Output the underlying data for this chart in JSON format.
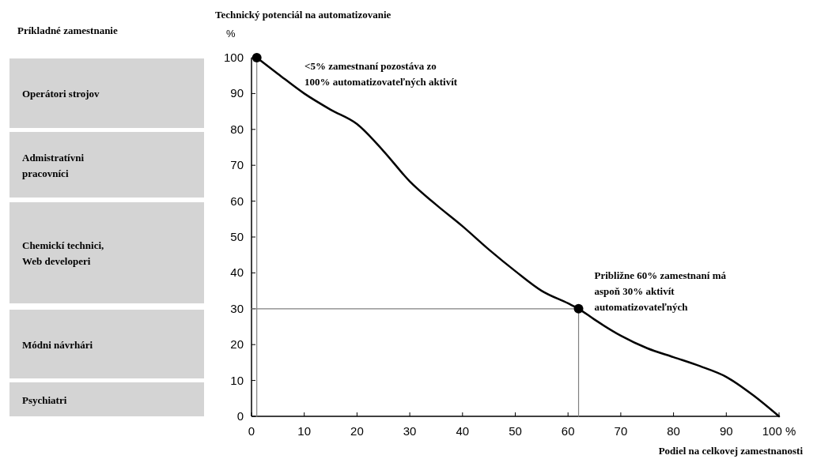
{
  "chart_data": {
    "type": "line",
    "ylabel": "Technický potenciál na automatizovanie\n%",
    "xlabel": "Podiel na celkovej zamestnanosti",
    "xlim": [
      0,
      100
    ],
    "xticks": [
      0,
      10,
      20,
      30,
      40,
      50,
      60,
      70,
      80,
      {
        "value": 90,
        "label": "90"
      },
      {
        "value": 100,
        "label": "100 %"
      }
    ],
    "ylim": [
      0,
      100
    ],
    "yticks": [
      0,
      10,
      20,
      30,
      40,
      50,
      60,
      70,
      80,
      90,
      100
    ],
    "series": [
      {
        "color": "#000000",
        "marker": "none",
        "x": [
          1,
          5,
          10,
          15,
          20,
          25,
          30,
          35,
          40,
          45,
          50,
          55,
          60,
          62,
          65,
          70,
          75,
          80,
          85,
          90,
          95,
          100
        ],
        "values": [
          100,
          95.5,
          90,
          85.5,
          81.5,
          74,
          65.5,
          59,
          53,
          46.5,
          40.5,
          35,
          31.5,
          30,
          27,
          22.5,
          19,
          16.5,
          14,
          11,
          6,
          0
        ]
      },
      {
        "type": "line",
        "color": "#808080",
        "marker": "none",
        "x": [
          0,
          62,
          62
        ],
        "values": [
          30,
          30,
          0
        ]
      },
      {
        "type": "line",
        "color": "#808080",
        "marker": "none",
        "x": [
          1,
          1
        ],
        "values": [
          0,
          100
        ]
      },
      {
        "type": "scatter",
        "color": "#000000",
        "marker": "circle",
        "x": [
          1,
          62
        ],
        "values": [
          100,
          30
        ]
      }
    ],
    "annotations": [
      "Príkladné zamestnanie",
      "Operátori strojov",
      "Admistratívni\npracovníci",
      "Chemickí technici,\nWeb developeri",
      "Módni návrhári",
      "Psychiatri",
      "<5% zamestnaní pozostáva zo\n100% automatizovateľných aktivít",
      {
        "text": "Približne 60% zamestnaní má\naspoň 30% aktivít\nautomatizovateľných",
        "x": 62,
        "y": 30
      }
    ]
  }
}
